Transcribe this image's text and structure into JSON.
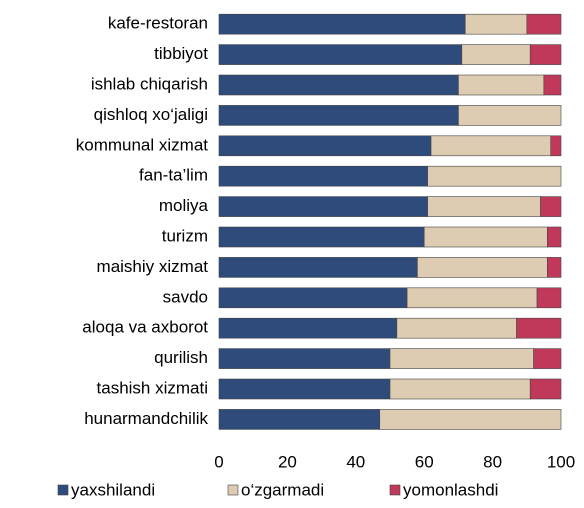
{
  "chart_data": {
    "type": "stacked-barh",
    "categories": [
      "kafe-restoran",
      "tibbiyot",
      "ishlab chiqarish",
      "qishloq xo‘jaligi",
      "kommunal xizmat",
      "fan-ta’lim",
      "moliya",
      "turizm",
      "maishiy xizmat",
      "savdo",
      "aloqa va axborot",
      "qurilish",
      "tashish xizmati",
      "hunarmandchilik"
    ],
    "series": [
      {
        "name": "yaxshilandi",
        "color": "#2f4b7c",
        "values": [
          72,
          71,
          70,
          70,
          62,
          61,
          61,
          60,
          58,
          55,
          52,
          50,
          50,
          47
        ]
      },
      {
        "name": "o‘zgarmadi",
        "color": "#ddcbb2",
        "values": [
          18,
          20,
          25,
          30,
          35,
          39,
          33,
          36,
          38,
          38,
          35,
          42,
          41,
          53
        ]
      },
      {
        "name": "yomonlashdi",
        "color": "#c0395a",
        "values": [
          10,
          9,
          5,
          0,
          3,
          0,
          6,
          4,
          4,
          7,
          13,
          8,
          9,
          0
        ]
      }
    ],
    "xlim": [
      0,
      100
    ],
    "xticks": [
      0,
      20,
      40,
      60,
      80,
      100
    ],
    "legend": "bottom"
  }
}
